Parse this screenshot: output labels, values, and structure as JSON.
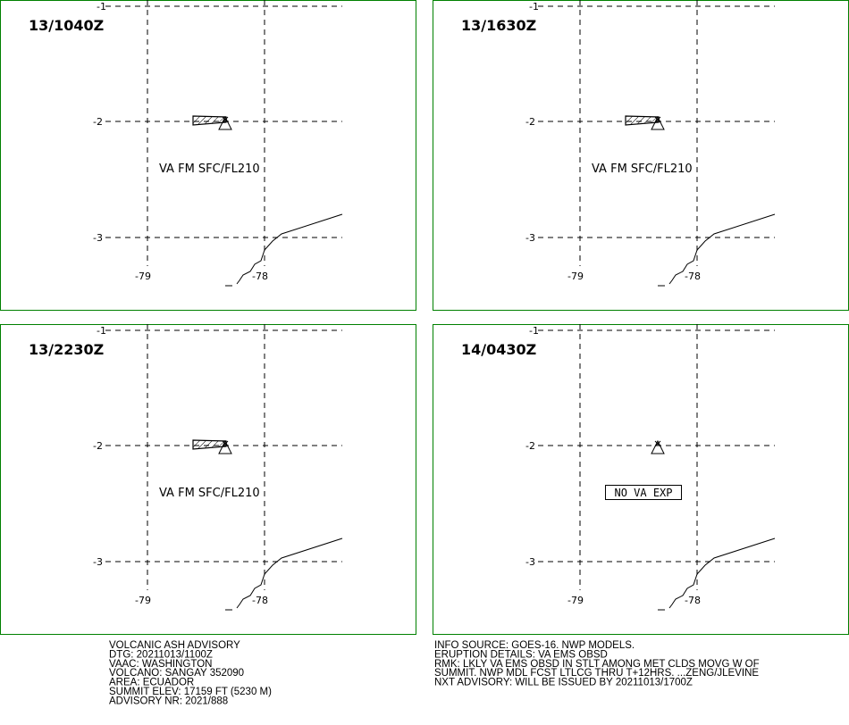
{
  "panels": [
    {
      "time": "13/1040Z",
      "label": "VA FM SFC/FL210"
    },
    {
      "time": "13/1630Z",
      "label": "VA FM SFC/FL210"
    },
    {
      "time": "13/2230Z",
      "label": "VA FM SFC/FL210"
    },
    {
      "time": "14/0430Z",
      "label": "NO VA EXP"
    }
  ],
  "lat_labels": [
    "-1",
    "-2",
    "-3"
  ],
  "lon_labels": [
    "-79",
    "-78"
  ],
  "advisory_left": [
    "VOLCANIC ASH ADVISORY",
    "DTG: 20211013/1100Z",
    "VAAC: WASHINGTON",
    "VOLCANO: SANGAY 352090",
    "AREA: ECUADOR",
    "SUMMIT ELEV: 17159 FT (5230 M)",
    "ADVISORY NR: 2021/888"
  ],
  "advisory_right": [
    "INFO SOURCE: GOES-16. NWP MODELS.",
    "ERUPTION DETAILS: VA EMS OBSD",
    "RMK: LKLY VA EMS OBSD IN STLT AMONG MET CLDS MOVG W OF",
    "SUMMIT. NWP MDL FCST LTLCG THRU T+12HRS. ...ZENG/JLEVINE",
    "NXT ADVISORY: WILL BE ISSUED BY 20211013/1700Z"
  ]
}
